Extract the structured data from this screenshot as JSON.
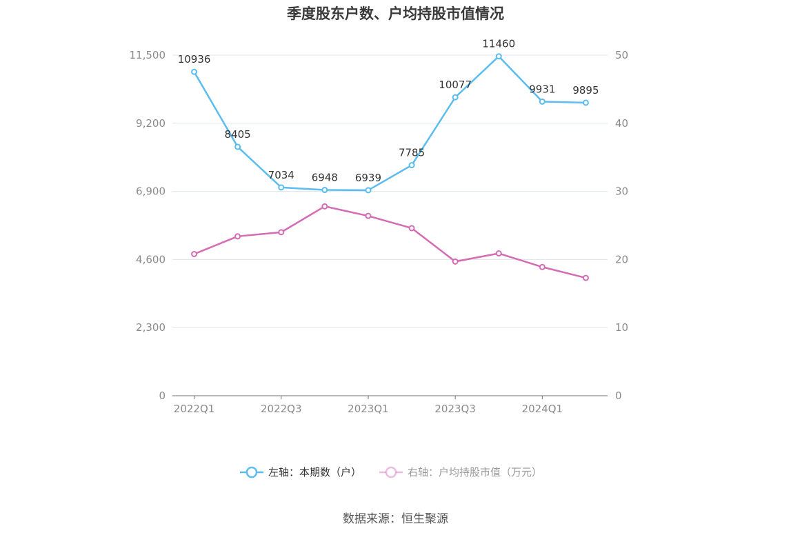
{
  "chart_data": {
    "type": "line",
    "title": "季度股东户数、户均持股市值情况",
    "categories": [
      "2022Q1",
      "2022Q2",
      "2022Q3",
      "2022Q4",
      "2023Q1",
      "2023Q2",
      "2023Q3",
      "2023Q4",
      "2024Q1",
      "2024Q2"
    ],
    "x_tick_labels": [
      "2022Q1",
      "2022Q3",
      "2023Q1",
      "2023Q3",
      "2024Q1"
    ],
    "left_axis": {
      "ylim": [
        0,
        11500
      ],
      "ticks": [
        "0",
        "2,300",
        "4,600",
        "6,900",
        "9,200",
        "11,500"
      ],
      "tick_values": [
        0,
        2300,
        4600,
        6900,
        9200,
        11500
      ]
    },
    "right_axis": {
      "ylim": [
        0,
        50
      ],
      "ticks": [
        "0",
        "10",
        "20",
        "30",
        "40",
        "50"
      ],
      "tick_values": [
        0,
        10,
        20,
        30,
        40,
        50
      ]
    },
    "series": [
      {
        "name": "左轴：本期数（户）",
        "axis": "left",
        "color": "#5bbcef",
        "values": [
          10936,
          8405,
          7034,
          6948,
          6939,
          7785,
          10077,
          11460,
          9931,
          9895
        ],
        "labels": [
          "10936",
          "8405",
          "7034",
          "6948",
          "6939",
          "7785",
          "10077",
          "11460",
          "9931",
          "9895"
        ]
      },
      {
        "name": "右轴：户均持股市值（万元）",
        "axis": "right",
        "color": "#d46bb4",
        "values": [
          20.8,
          23.4,
          24.0,
          27.8,
          26.4,
          24.6,
          19.7,
          20.9,
          18.9,
          17.3
        ]
      }
    ],
    "grid": true,
    "legend_position": "bottom"
  },
  "source": "数据来源：恒生聚源"
}
